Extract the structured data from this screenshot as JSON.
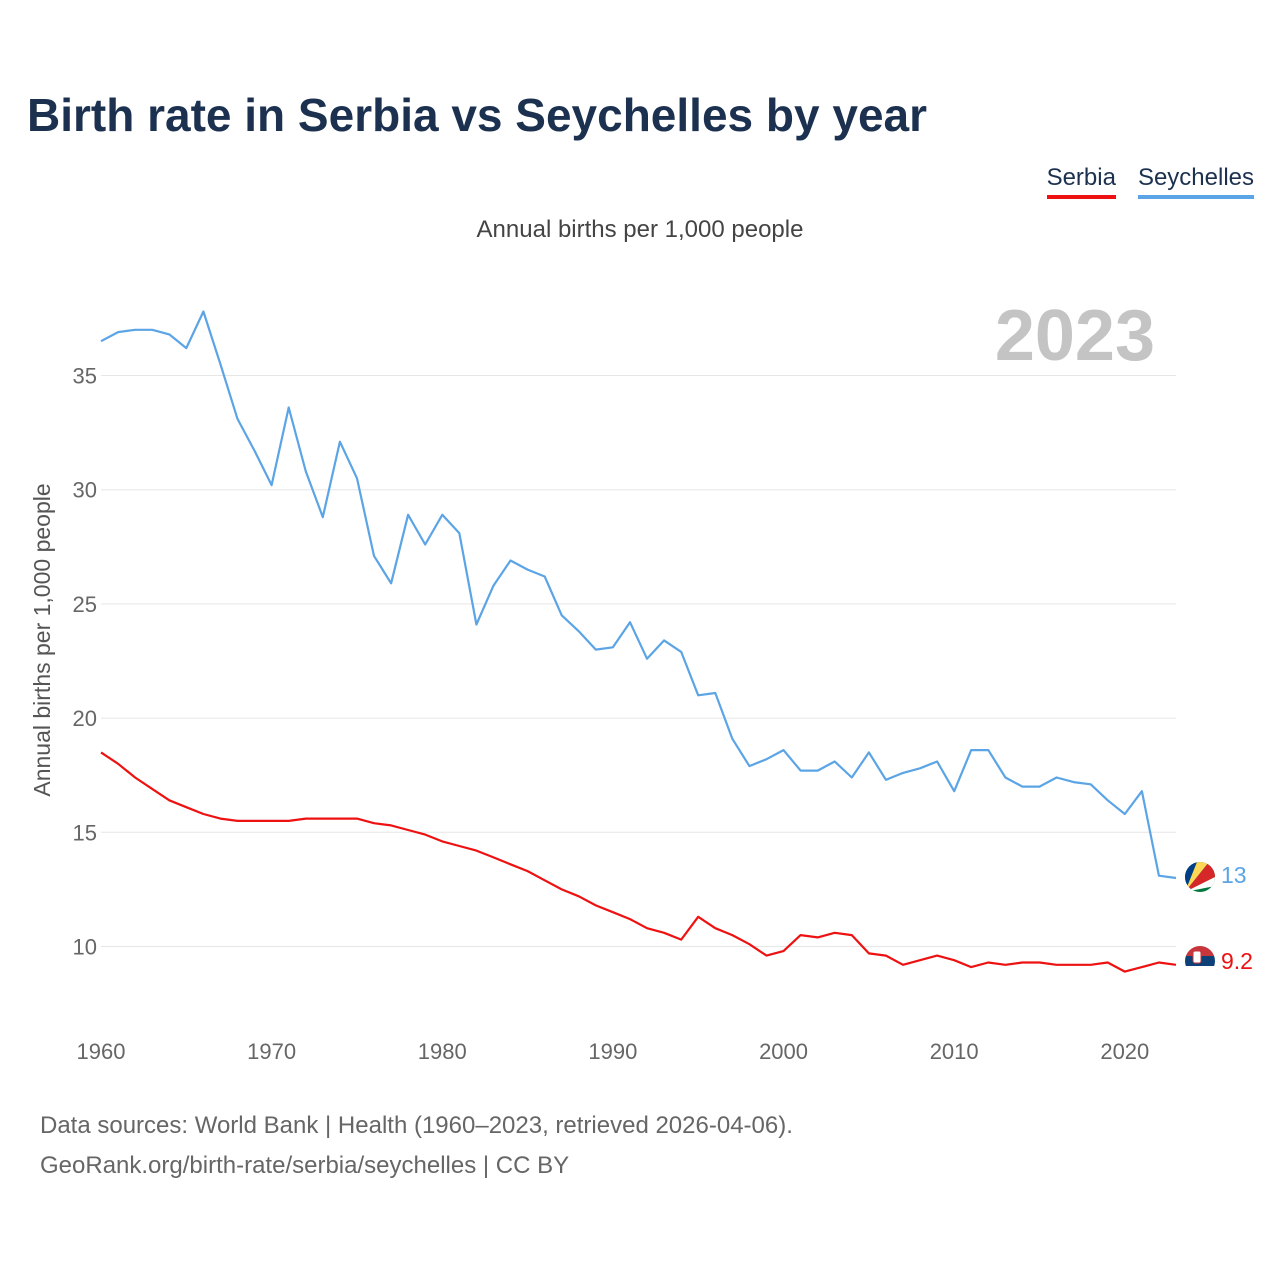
{
  "header": {
    "title": "Birth rate in Serbia vs Seychelles by year",
    "subtitle": "Annual births per 1,000 people"
  },
  "legend": [
    {
      "label": "Serbia",
      "color": "#ee1111"
    },
    {
      "label": "Seychelles",
      "color": "#5ba4e5"
    }
  ],
  "footer": {
    "line1": "Data sources: World Bank | Health (1960–2023, retrieved 2026-04-06).",
    "line2": "GeoRank.org/birth-rate/serbia/seychelles | CC BY"
  },
  "chart_data": {
    "type": "line",
    "title": "Birth rate in Serbia vs Seychelles by year",
    "ylabel": "Annual births per 1,000 people",
    "xlabel": "",
    "year_label": "2023",
    "xlim": [
      1960,
      2023
    ],
    "ylim": [
      7,
      39
    ],
    "x_ticks": [
      1960,
      1970,
      1980,
      1990,
      2000,
      2010,
      2020
    ],
    "y_ticks": [
      10,
      15,
      20,
      25,
      30,
      35
    ],
    "grid": true,
    "x": [
      1960,
      1961,
      1962,
      1963,
      1964,
      1965,
      1966,
      1967,
      1968,
      1969,
      1970,
      1971,
      1972,
      1973,
      1974,
      1975,
      1976,
      1977,
      1978,
      1979,
      1980,
      1981,
      1982,
      1983,
      1984,
      1985,
      1986,
      1987,
      1988,
      1989,
      1990,
      1991,
      1992,
      1993,
      1994,
      1995,
      1996,
      1997,
      1998,
      1999,
      2000,
      2001,
      2002,
      2003,
      2004,
      2005,
      2006,
      2007,
      2008,
      2009,
      2010,
      2011,
      2012,
      2013,
      2014,
      2015,
      2016,
      2017,
      2018,
      2019,
      2020,
      2021,
      2022,
      2023
    ],
    "series": [
      {
        "name": "Serbia",
        "color": "#ee1111",
        "end_label": "9.2",
        "values": [
          18.5,
          18.0,
          17.4,
          16.9,
          16.4,
          16.1,
          15.8,
          15.6,
          15.5,
          15.5,
          15.5,
          15.5,
          15.6,
          15.6,
          15.6,
          15.6,
          15.4,
          15.3,
          15.1,
          14.9,
          14.6,
          14.4,
          14.2,
          13.9,
          13.6,
          13.3,
          12.9,
          12.5,
          12.2,
          11.8,
          11.5,
          11.2,
          10.8,
          10.6,
          10.3,
          11.3,
          10.8,
          10.5,
          10.1,
          9.6,
          9.8,
          10.5,
          10.4,
          10.6,
          10.5,
          9.7,
          9.6,
          9.2,
          9.4,
          9.6,
          9.4,
          9.1,
          9.3,
          9.2,
          9.3,
          9.3,
          9.2,
          9.2,
          9.2,
          9.3,
          8.9,
          9.1,
          9.3,
          9.2
        ]
      },
      {
        "name": "Seychelles",
        "color": "#5ba4e5",
        "end_label": "13",
        "values": [
          36.5,
          36.9,
          37.0,
          37.0,
          36.8,
          36.2,
          37.8,
          35.5,
          33.1,
          31.7,
          30.2,
          33.6,
          30.8,
          28.8,
          32.1,
          30.5,
          27.1,
          25.9,
          28.9,
          27.6,
          28.9,
          28.1,
          24.1,
          25.8,
          26.9,
          26.5,
          26.2,
          24.5,
          23.8,
          23.0,
          23.1,
          24.2,
          22.6,
          23.4,
          22.9,
          21.0,
          21.1,
          19.1,
          17.9,
          18.2,
          18.6,
          17.7,
          17.7,
          18.1,
          17.4,
          18.5,
          17.3,
          17.6,
          17.8,
          18.1,
          16.8,
          18.6,
          18.6,
          17.4,
          17.0,
          17.0,
          17.4,
          17.2,
          17.1,
          16.4,
          15.8,
          16.8,
          13.1,
          13.0
        ]
      }
    ]
  }
}
